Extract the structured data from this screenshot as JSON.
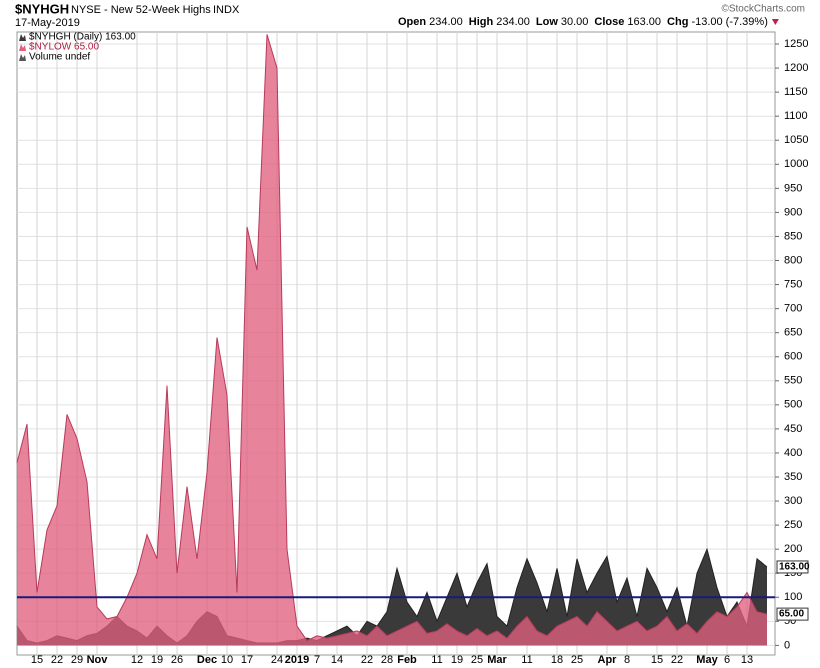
{
  "chart_data": {
    "type": "area",
    "symbol": "$NYHGH",
    "title": "NYSE - New 52-Week Highs",
    "exchange": "INDX",
    "date": "17-May-2019",
    "quote": [
      {
        "label": "Open",
        "value": "234.00"
      },
      {
        "label": "High",
        "value": "234.00"
      },
      {
        "label": "Low",
        "value": "30.00"
      },
      {
        "label": "Close",
        "value": "163.00"
      },
      {
        "label": "Chg",
        "value": "-13.00 (-7.39%)"
      }
    ],
    "credit": "©StockCharts.com",
    "legend": [
      "$NYHGH (Daily) 163.00",
      "$NYLOW 65.00",
      "Volume undef"
    ],
    "categories": [
      null,
      null,
      "15",
      null,
      "22",
      null,
      "29",
      null,
      "Nov",
      null,
      null,
      null,
      "12",
      null,
      "19",
      null,
      "26",
      null,
      null,
      "Dec",
      null,
      "10",
      null,
      "17",
      null,
      null,
      "24",
      null,
      "2019",
      null,
      "7",
      null,
      "14",
      null,
      null,
      "22",
      null,
      "28",
      null,
      "Feb",
      null,
      null,
      "11",
      null,
      "19",
      null,
      "25",
      null,
      "Mar",
      null,
      null,
      "11",
      null,
      null,
      "18",
      null,
      "25",
      null,
      null,
      "Apr",
      null,
      "8",
      null,
      null,
      "15",
      null,
      "22",
      null,
      null,
      "May",
      null,
      "6",
      null,
      "13",
      null,
      null
    ],
    "series": [
      {
        "name": "$NYHGH",
        "color": "#3a3a3a",
        "last_value_label": "163.00",
        "values": [
          40,
          10,
          5,
          10,
          20,
          15,
          10,
          20,
          25,
          40,
          60,
          40,
          30,
          15,
          40,
          20,
          5,
          20,
          50,
          70,
          60,
          20,
          15,
          10,
          5,
          5,
          5,
          10,
          10,
          15,
          10,
          20,
          30,
          40,
          20,
          50,
          40,
          70,
          160,
          90,
          60,
          110,
          50,
          100,
          150,
          80,
          130,
          170,
          60,
          40,
          120,
          180,
          130,
          70,
          160,
          60,
          180,
          110,
          150,
          185,
          90,
          140,
          60,
          160,
          120,
          70,
          120,
          40,
          150,
          200,
          120,
          60,
          90,
          40,
          180,
          163
        ]
      },
      {
        "name": "$NYLOW",
        "color": "#e0607e",
        "last_value_label": "65.00",
        "values": [
          380,
          460,
          110,
          240,
          290,
          480,
          430,
          340,
          80,
          55,
          60,
          100,
          150,
          230,
          180,
          540,
          150,
          330,
          180,
          360,
          640,
          520,
          110,
          870,
          780,
          1270,
          1200,
          200,
          40,
          10,
          20,
          15,
          20,
          25,
          30,
          20,
          40,
          20,
          30,
          40,
          50,
          25,
          30,
          45,
          30,
          20,
          35,
          20,
          30,
          15,
          40,
          60,
          30,
          20,
          40,
          50,
          60,
          40,
          70,
          50,
          30,
          40,
          50,
          30,
          40,
          60,
          30,
          45,
          25,
          50,
          70,
          60,
          80,
          110,
          70,
          65
        ]
      }
    ],
    "reference_line": 100,
    "ylim": [
      -20,
      1275
    ],
    "yticks": [
      0,
      50,
      100,
      150,
      200,
      250,
      300,
      350,
      400,
      450,
      500,
      550,
      600,
      650,
      700,
      750,
      800,
      850,
      900,
      950,
      1000,
      1050,
      1100,
      1150,
      1200,
      1250
    ],
    "grid": true
  }
}
